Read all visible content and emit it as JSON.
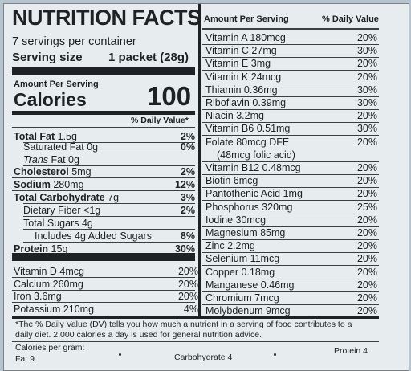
{
  "title": "NUTRITION FACTS",
  "servings_per_container": "7 servings per container",
  "serving_size_label": "Serving size",
  "serving_size_value": "1 packet (28g)",
  "amount_per_serving": "Amount Per Serving",
  "calories_label": "Calories",
  "calories_value": "100",
  "dv_header": "% Daily Value*",
  "left_nutrients": [
    {
      "name": "Total Fat",
      "amount": "1.5g",
      "dv": "2%",
      "bold": true,
      "indent": 0
    },
    {
      "name": "Saturated Fat",
      "amount": "0g",
      "dv": "0%",
      "bold": false,
      "indent": 1
    },
    {
      "name": "Trans",
      "amount": "Fat 0g",
      "dv": "",
      "bold": false,
      "indent": 1,
      "italic_name": true
    },
    {
      "name": "Cholesterol",
      "amount": "5mg",
      "dv": "2%",
      "bold": true,
      "indent": 0
    },
    {
      "name": "Sodium",
      "amount": "280mg",
      "dv": "12%",
      "bold": true,
      "indent": 0
    },
    {
      "name": "Total Carbohydrate",
      "amount": "7g",
      "dv": "3%",
      "bold": true,
      "indent": 0
    },
    {
      "name": "Dietary Fiber",
      "amount": "<1g",
      "dv": "2%",
      "bold": false,
      "indent": 1
    },
    {
      "name": "Total Sugars",
      "amount": "4g",
      "dv": "",
      "bold": false,
      "indent": 1
    },
    {
      "name": "Includes 4g Added Sugars",
      "amount": "",
      "dv": "8%",
      "bold": false,
      "indent": 2
    },
    {
      "name": "Protein",
      "amount": "15g",
      "dv": "30%",
      "bold": true,
      "indent": 0
    }
  ],
  "left_vitamins": [
    {
      "name": "Vitamin D 4mcg",
      "dv": "20%"
    },
    {
      "name": "Calcium 260mg",
      "dv": "20%"
    },
    {
      "name": "Iron 3.6mg",
      "dv": "20%"
    },
    {
      "name": "Potassium 210mg",
      "dv": "4%"
    }
  ],
  "right_header": {
    "amount": "Amount Per Serving",
    "dv": "% Daily Value"
  },
  "right_vitamins": [
    {
      "name": "Vitamin A 180mcg",
      "dv": "20%"
    },
    {
      "name": "Vitamin C 27mg",
      "dv": "30%"
    },
    {
      "name": "Vitamin E 3mg",
      "dv": "20%"
    },
    {
      "name": "Vitamin K 24mcg",
      "dv": "20%"
    },
    {
      "name": "Thiamin 0.36mg",
      "dv": "30%"
    },
    {
      "name": "Riboflavin 0.39mg",
      "dv": "30%"
    },
    {
      "name": "Niacin 3.2mg",
      "dv": "20%"
    },
    {
      "name": "Vitamin B6 0.51mg",
      "dv": "30%"
    },
    {
      "name": "Folate 80mcg DFE",
      "dv": "20%"
    },
    {
      "name": "(48mcg folic acid)",
      "dv": ""
    },
    {
      "name": "Vitamin B12 0.48mcg",
      "dv": "20%"
    },
    {
      "name": "Biotin 6mcg",
      "dv": "20%"
    },
    {
      "name": "Pantothenic Acid 1mg",
      "dv": "20%"
    },
    {
      "name": "Phosphorus 320mg",
      "dv": "25%"
    },
    {
      "name": "Iodine 30mcg",
      "dv": "20%"
    },
    {
      "name": "Magnesium 85mg",
      "dv": "20%"
    },
    {
      "name": "Zinc 2.2mg",
      "dv": "20%"
    },
    {
      "name": "Selenium 11mcg",
      "dv": "20%"
    },
    {
      "name": "Copper 0.18mg",
      "dv": "20%"
    },
    {
      "name": "Manganese 0.46mg",
      "dv": "20%"
    },
    {
      "name": "Chromium 7mcg",
      "dv": "20%"
    },
    {
      "name": "Molybdenum 9mcg",
      "dv": "20%"
    }
  ],
  "footnote": "*The % Daily Value (DV) tells you how much a nutrient in a serving of food contributes to a daily diet. 2,000 calories a day is used for general nutrition advice.",
  "calories_per_gram_label": "Calories per gram:",
  "per_gram": {
    "fat": "Fat 9",
    "carb": "Carbohydrate 4",
    "protein": "Protein 4"
  }
}
